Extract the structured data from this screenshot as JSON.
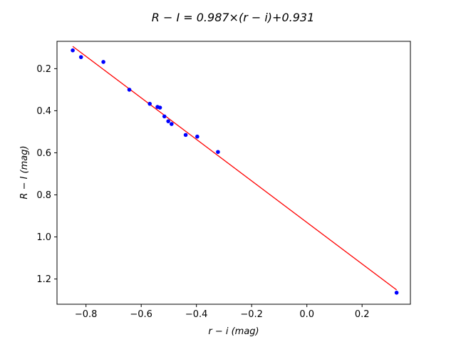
{
  "chart_data": {
    "type": "scatter",
    "title": "R − I = 0.987×(r − i)+0.931",
    "xlabel": "r − i  (mag)",
    "ylabel": "R − I  (mag)",
    "xlim": [
      -0.905,
      0.375
    ],
    "ylim": [
      1.32,
      0.07
    ],
    "y_inverted": true,
    "grid": false,
    "x_ticks": [
      -0.8,
      -0.6,
      -0.4,
      -0.2,
      0.0,
      0.2
    ],
    "x_tick_labels": [
      "−0.8",
      "−0.6",
      "−0.4",
      "−0.2",
      "0.0",
      "0.2"
    ],
    "y_ticks": [
      0.2,
      0.4,
      0.6,
      0.8,
      1.0,
      1.2
    ],
    "y_tick_labels": [
      "0.2",
      "0.4",
      "0.6",
      "0.8",
      "1.0",
      "1.2"
    ],
    "point_color": "#0000ff",
    "line_color": "#ff0000",
    "points": [
      {
        "x": -0.848,
        "y": 0.113
      },
      {
        "x": -0.818,
        "y": 0.145
      },
      {
        "x": -0.737,
        "y": 0.168
      },
      {
        "x": -0.643,
        "y": 0.3
      },
      {
        "x": -0.569,
        "y": 0.367
      },
      {
        "x": -0.541,
        "y": 0.382
      },
      {
        "x": -0.532,
        "y": 0.385
      },
      {
        "x": -0.516,
        "y": 0.427
      },
      {
        "x": -0.502,
        "y": 0.45
      },
      {
        "x": -0.49,
        "y": 0.463
      },
      {
        "x": -0.439,
        "y": 0.515
      },
      {
        "x": -0.397,
        "y": 0.523
      },
      {
        "x": -0.322,
        "y": 0.596
      },
      {
        "x": 0.325,
        "y": 1.265
      }
    ],
    "fit": {
      "slope": 0.987,
      "intercept": 0.931,
      "x_range": [
        -0.848,
        0.325
      ]
    }
  }
}
